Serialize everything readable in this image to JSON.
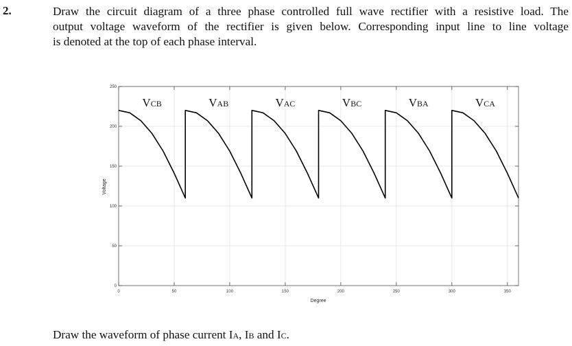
{
  "question": {
    "number": "2.",
    "lines": [
      "Draw the circuit diagram of a three phase controlled full wave rectifier with a resistive load. The",
      "output voltage waveform of the rectifier is given below. Corresponding input line to line voltage",
      "is denoted at the top of each phase interval."
    ]
  },
  "footer": {
    "prefix": "Draw the waveform of phase current I",
    "a_sub": "A",
    "sep1": ", I",
    "b_sub": "B",
    "sep2": " and I",
    "c_sub": "C",
    "suffix": "."
  },
  "chart_data": {
    "type": "line",
    "xlabel": "Degree",
    "ylabel": "Voltage",
    "xlim": [
      0,
      360
    ],
    "ylim": [
      0,
      250
    ],
    "xticks": [
      0,
      50,
      100,
      150,
      200,
      250,
      300,
      350
    ],
    "yticks": [
      0,
      50,
      100,
      150,
      200,
      250
    ],
    "grid": true,
    "intervals": [
      {
        "main": "V",
        "sub": "CB",
        "x_center": 30
      },
      {
        "main": "V",
        "sub": "AB",
        "x_center": 90
      },
      {
        "main": "V",
        "sub": "AC",
        "x_center": 150
      },
      {
        "main": "V",
        "sub": "BC",
        "x_center": 210
      },
      {
        "main": "V",
        "sub": "BA",
        "x_center": 270
      },
      {
        "main": "V",
        "sub": "CA",
        "x_center": 330
      }
    ],
    "series": [
      {
        "x": [
          0,
          10,
          20,
          30,
          40,
          50,
          60,
          60,
          70,
          80,
          90,
          100,
          110,
          120,
          120,
          130,
          140,
          150,
          160,
          170,
          180,
          180,
          190,
          200,
          210,
          220,
          230,
          240,
          240,
          250,
          260,
          270,
          280,
          290,
          300,
          300,
          310,
          320,
          330,
          340,
          350,
          360
        ],
        "y": [
          220,
          217,
          207,
          191,
          169,
          141,
          110,
          220,
          217,
          207,
          191,
          169,
          141,
          110,
          220,
          217,
          207,
          191,
          169,
          141,
          110,
          220,
          217,
          207,
          191,
          169,
          141,
          110,
          220,
          217,
          207,
          191,
          169,
          141,
          110,
          220,
          217,
          207,
          191,
          169,
          141,
          110
        ]
      }
    ]
  }
}
